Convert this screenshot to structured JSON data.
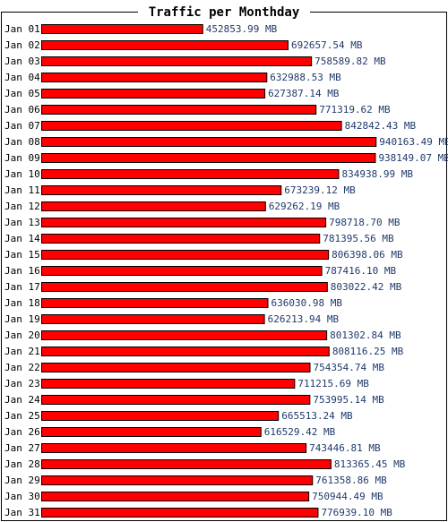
{
  "chart_data": {
    "type": "bar",
    "orientation": "horizontal",
    "title": "Traffic per Monthday",
    "unit": "MB",
    "categories": [
      "Jan 01",
      "Jan 02",
      "Jan 03",
      "Jan 04",
      "Jan 05",
      "Jan 06",
      "Jan 07",
      "Jan 08",
      "Jan 09",
      "Jan 10",
      "Jan 11",
      "Jan 12",
      "Jan 13",
      "Jan 14",
      "Jan 15",
      "Jan 16",
      "Jan 17",
      "Jan 18",
      "Jan 19",
      "Jan 20",
      "Jan 21",
      "Jan 22",
      "Jan 23",
      "Jan 24",
      "Jan 25",
      "Jan 26",
      "Jan 27",
      "Jan 28",
      "Jan 29",
      "Jan 30",
      "Jan 31"
    ],
    "values": [
      452853.99,
      692657.54,
      758589.82,
      632988.53,
      627387.14,
      771319.62,
      842842.43,
      940163.49,
      938149.07,
      834938.99,
      673239.12,
      629262.19,
      798718.7,
      781395.56,
      806398.06,
      787416.1,
      803022.42,
      636030.98,
      626213.94,
      801302.84,
      808116.25,
      754354.74,
      711215.69,
      753995.14,
      665513.24,
      616529.42,
      743446.81,
      813365.45,
      761358.86,
      750944.49,
      776939.1
    ],
    "value_labels": [
      "452853.99 MB",
      "692657.54 MB",
      "758589.82 MB",
      "632988.53 MB",
      "627387.14 MB",
      "771319.62 MB",
      "842842.43 MB",
      "940163.49 MB",
      "938149.07 MB",
      "834938.99 MB",
      "673239.12 MB",
      "629262.19 MB",
      "798718.70 MB",
      "781395.56 MB",
      "806398.06 MB",
      "787416.10 MB",
      "803022.42 MB",
      "636030.98 MB",
      "626213.94 MB",
      "801302.84 MB",
      "808116.25 MB",
      "754354.74 MB",
      "711215.69 MB",
      "753995.14 MB",
      "665513.24 MB",
      "616529.42 MB",
      "743446.81 MB",
      "813365.45 MB",
      "761358.86 MB",
      "750944.49 MB",
      "776939.10 MB"
    ],
    "bar_color": "#ff0000",
    "bar_edge_color": "#000000",
    "label_color": "#1f3a6a",
    "grid": false,
    "legend": false
  }
}
